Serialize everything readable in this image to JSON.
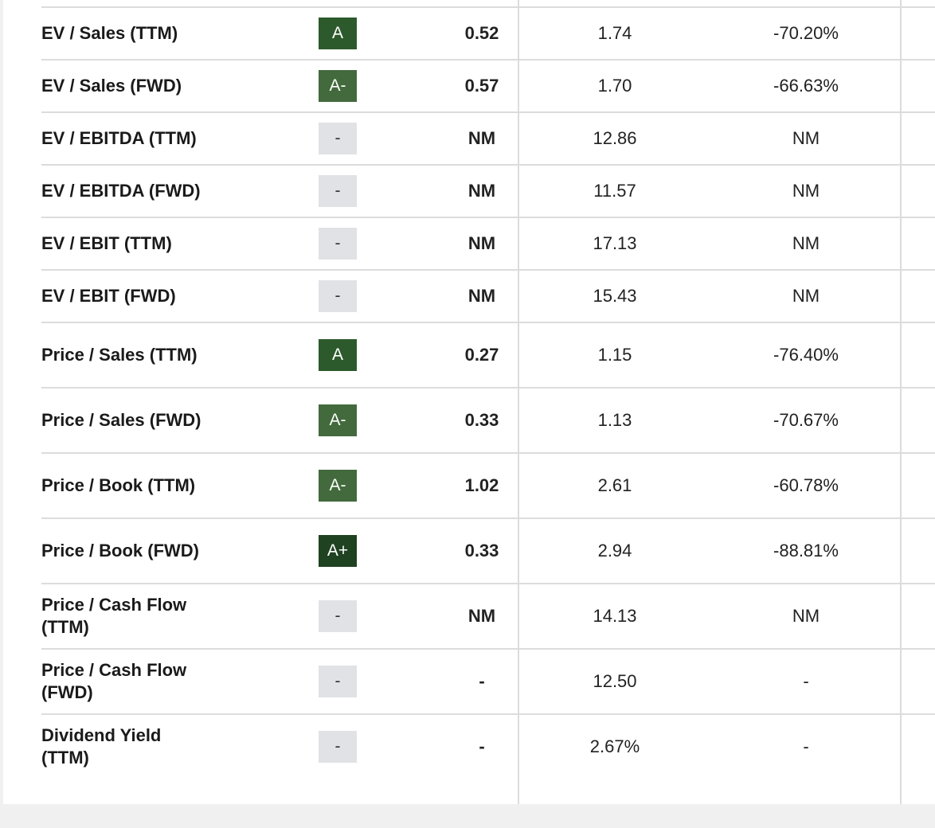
{
  "table": {
    "rows": [
      {
        "metric": "EV / Sales (TTM)",
        "grade": "A",
        "value": "0.52",
        "sector": "1.74",
        "difference": "-70.20%"
      },
      {
        "metric": "EV / Sales (FWD)",
        "grade": "A-",
        "value": "0.57",
        "sector": "1.70",
        "difference": "-66.63%"
      },
      {
        "metric": "EV / EBITDA (TTM)",
        "grade": "-",
        "value": "NM",
        "sector": "12.86",
        "difference": "NM"
      },
      {
        "metric": "EV / EBITDA (FWD)",
        "grade": "-",
        "value": "NM",
        "sector": "11.57",
        "difference": "NM"
      },
      {
        "metric": "EV / EBIT (TTM)",
        "grade": "-",
        "value": "NM",
        "sector": "17.13",
        "difference": "NM"
      },
      {
        "metric": "EV / EBIT (FWD)",
        "grade": "-",
        "value": "NM",
        "sector": "15.43",
        "difference": "NM"
      },
      {
        "metric": "Price / Sales (TTM)",
        "grade": "A",
        "value": "0.27",
        "sector": "1.15",
        "difference": "-76.40%"
      },
      {
        "metric": "Price / Sales (FWD)",
        "grade": "A-",
        "value": "0.33",
        "sector": "1.13",
        "difference": "-70.67%"
      },
      {
        "metric": "Price / Book (TTM)",
        "grade": "A-",
        "value": "1.02",
        "sector": "2.61",
        "difference": "-60.78%"
      },
      {
        "metric": "Price / Book (FWD)",
        "grade": "A+",
        "value": "0.33",
        "sector": "2.94",
        "difference": "-88.81%"
      },
      {
        "metric": "Price / Cash Flow (TTM)",
        "grade": "-",
        "value": "NM",
        "sector": "14.13",
        "difference": "NM"
      },
      {
        "metric": "Price / Cash Flow (FWD)",
        "grade": "-",
        "value": "-",
        "sector": "12.50",
        "difference": "-"
      },
      {
        "metric": "Dividend Yield (TTM)",
        "grade": "-",
        "value": "-",
        "sector": "2.67%",
        "difference": "-"
      }
    ]
  }
}
